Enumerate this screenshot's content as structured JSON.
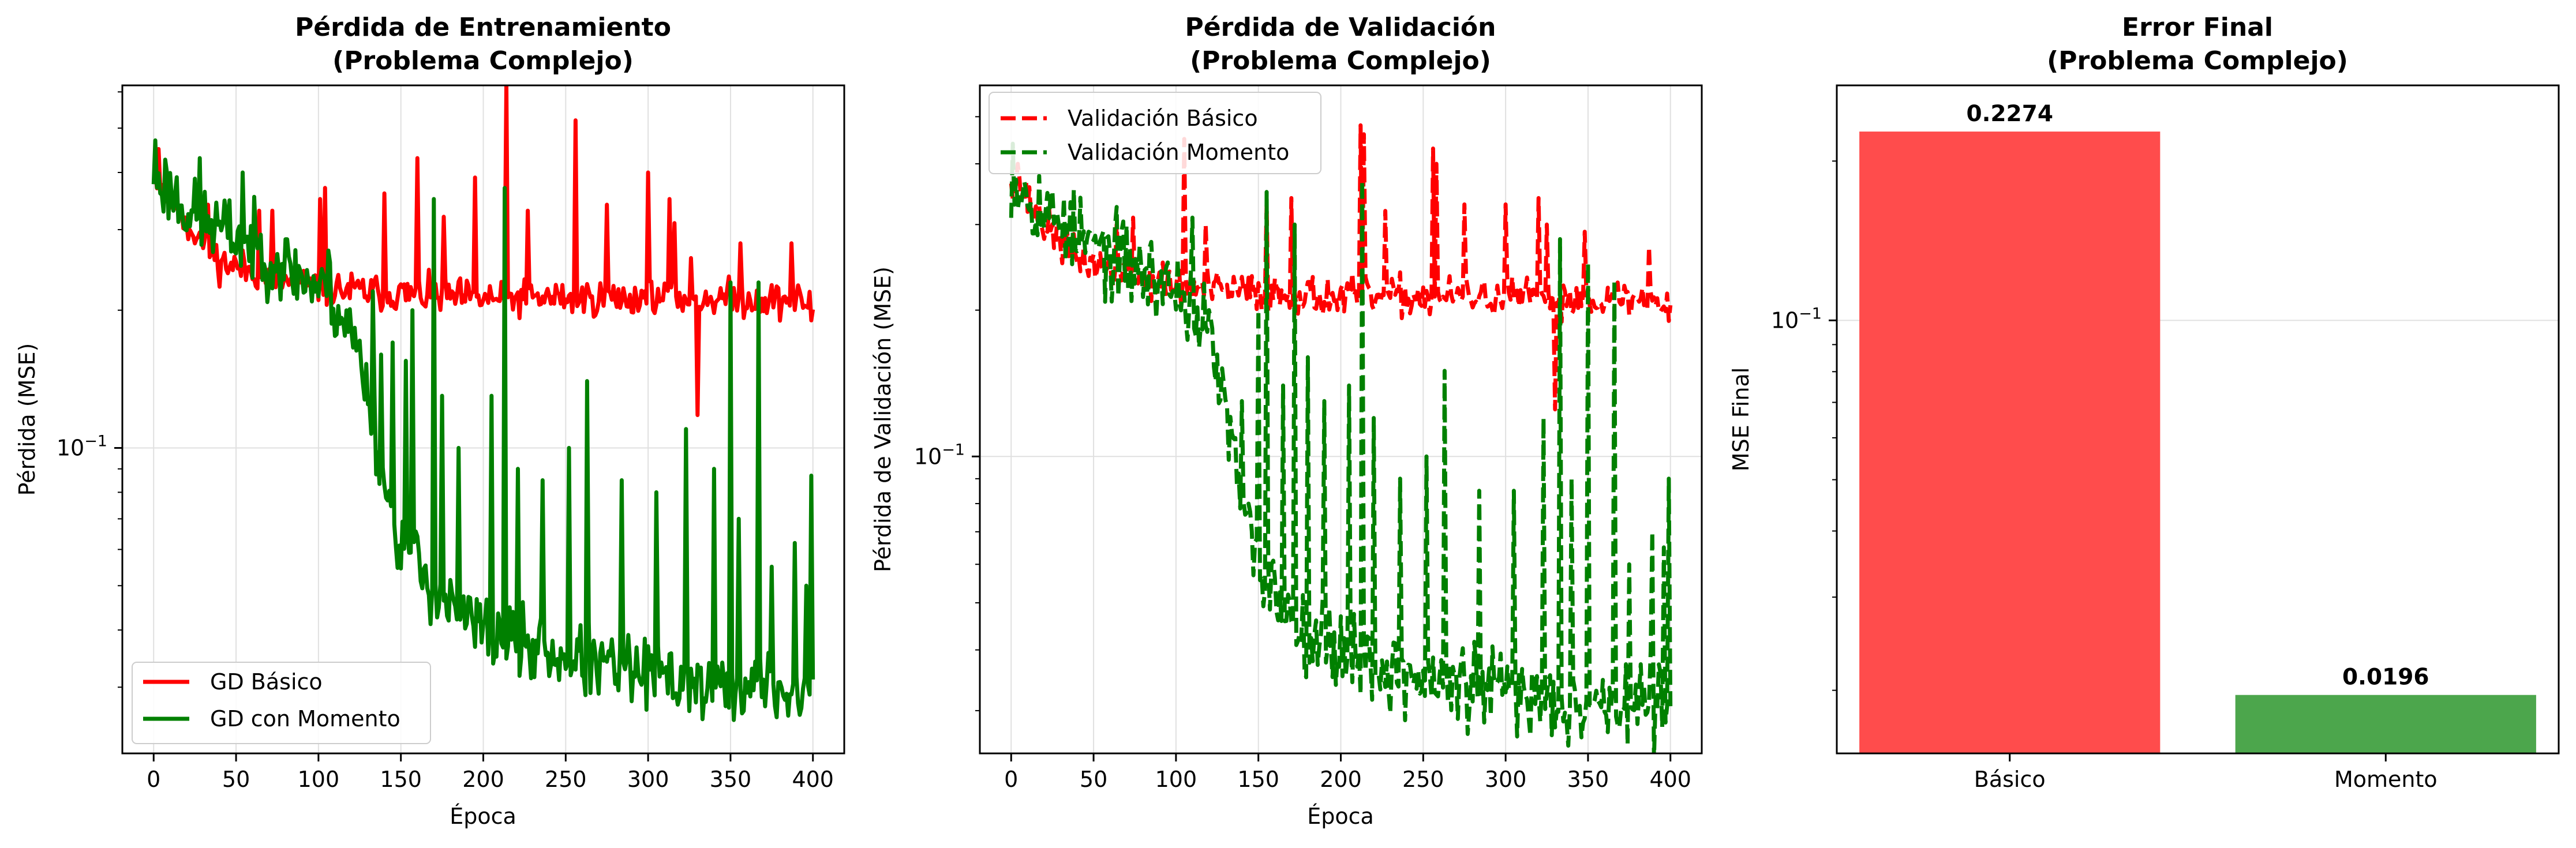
{
  "colors": {
    "basico": "#ff0000",
    "momento": "#008000",
    "bar_basico": "#ff4c4c",
    "bar_momento": "#4ca64c",
    "grid": "#e0e0e0"
  },
  "chart_data": [
    {
      "type": "line",
      "title": [
        "Pérdida de Entrenamiento",
        "(Problema Complejo)"
      ],
      "xlabel": "Época",
      "ylabel": "Pérdida (MSE)",
      "xscale": "linear",
      "yscale": "log",
      "xlim": [
        -19,
        419
      ],
      "ylim": [
        0.0215,
        0.62
      ],
      "xticks": [
        0,
        50,
        100,
        150,
        200,
        250,
        300,
        350,
        400
      ],
      "yticks": [
        {
          "value": 0.1,
          "label": "10",
          "exp": "−1"
        }
      ],
      "grid": true,
      "legend": {
        "position": "lower-left",
        "entries": [
          {
            "label": "GD Básico",
            "color": "#ff0000",
            "dash": "solid"
          },
          {
            "label": "GD con Momento",
            "color": "#008000",
            "dash": "solid"
          }
        ]
      },
      "series": [
        {
          "name": "GD Básico",
          "color": "#ff0000",
          "dash": "solid",
          "seed": 11,
          "anchors": [
            [
              0,
              0.4
            ],
            [
              20,
              0.31
            ],
            [
              40,
              0.255
            ],
            [
              80,
              0.232
            ],
            [
              110,
              0.222
            ],
            [
              150,
              0.217
            ],
            [
              200,
              0.212
            ],
            [
              250,
              0.213
            ],
            [
              300,
              0.212
            ],
            [
              350,
              0.213
            ],
            [
              400,
              0.208
            ]
          ],
          "noise": 0.07,
          "spikes": [
            [
              3,
              0.45
            ],
            [
              17,
              0.33
            ],
            [
              33,
              0.34
            ],
            [
              64,
              0.33
            ],
            [
              72,
              0.33
            ],
            [
              101,
              0.35
            ],
            [
              104,
              0.37
            ],
            [
              140,
              0.36
            ],
            [
              160,
              0.43
            ],
            [
              176,
              0.32
            ],
            [
              195,
              0.39
            ],
            [
              214,
              0.62
            ],
            [
              227,
              0.33
            ],
            [
              256,
              0.52
            ],
            [
              275,
              0.34
            ],
            [
              300,
              0.4
            ],
            [
              313,
              0.35
            ],
            [
              316,
              0.31
            ],
            [
              326,
              0.26
            ],
            [
              330,
              0.118
            ],
            [
              356,
              0.28
            ],
            [
              387,
              0.28
            ],
            [
              399,
              0.19
            ]
          ]
        },
        {
          "name": "GD con Momento",
          "color": "#008000",
          "dash": "solid",
          "seed": 23,
          "anchors": [
            [
              0,
              0.4
            ],
            [
              25,
              0.32
            ],
            [
              50,
              0.29
            ],
            [
              80,
              0.25
            ],
            [
              105,
              0.218
            ],
            [
              120,
              0.18
            ],
            [
              130,
              0.135
            ],
            [
              140,
              0.085
            ],
            [
              150,
              0.062
            ],
            [
              165,
              0.052
            ],
            [
              180,
              0.045
            ],
            [
              200,
              0.04
            ],
            [
              230,
              0.036
            ],
            [
              260,
              0.034
            ],
            [
              300,
              0.032
            ],
            [
              340,
              0.03
            ],
            [
              370,
              0.03
            ],
            [
              400,
              0.029
            ]
          ],
          "noise": 0.14,
          "spikes": [
            [
              1,
              0.47
            ],
            [
              28,
              0.43
            ],
            [
              54,
              0.4
            ],
            [
              106,
              0.27
            ],
            [
              120,
              0.18
            ],
            [
              133,
              0.22
            ],
            [
              138,
              0.16
            ],
            [
              145,
              0.17
            ],
            [
              153,
              0.155
            ],
            [
              157,
              0.2
            ],
            [
              170,
              0.35
            ],
            [
              175,
              0.13
            ],
            [
              185,
              0.1
            ],
            [
              205,
              0.13
            ],
            [
              213,
              0.37
            ],
            [
              221,
              0.09
            ],
            [
              236,
              0.085
            ],
            [
              252,
              0.1
            ],
            [
              263,
              0.14
            ],
            [
              284,
              0.085
            ],
            [
              305,
              0.08
            ],
            [
              323,
              0.11
            ],
            [
              340,
              0.09
            ],
            [
              350,
              0.23
            ],
            [
              355,
              0.07
            ],
            [
              367,
              0.23
            ],
            [
              375,
              0.055
            ],
            [
              389,
              0.062
            ],
            [
              396,
              0.05
            ],
            [
              399,
              0.087
            ]
          ]
        }
      ]
    },
    {
      "type": "line",
      "title": [
        "Pérdida de Validación",
        "(Problema Complejo)"
      ],
      "xlabel": "Época",
      "ylabel": "Pérdida de Validación (MSE)",
      "xscale": "linear",
      "yscale": "log",
      "xlim": [
        -19,
        419
      ],
      "ylim": [
        0.0245,
        0.58
      ],
      "xticks": [
        0,
        50,
        100,
        150,
        200,
        250,
        300,
        350,
        400
      ],
      "yticks": [
        {
          "value": 0.1,
          "label": "10",
          "exp": "−1"
        }
      ],
      "grid": true,
      "legend": {
        "position": "top-left",
        "entries": [
          {
            "label": "Validación Básico",
            "color": "#ff0000",
            "dash": "dashed"
          },
          {
            "label": "Validación Momento",
            "color": "#008000",
            "dash": "dashed"
          }
        ]
      },
      "series": [
        {
          "name": "Validación Básico",
          "color": "#ff0000",
          "dash": "dashed",
          "seed": 37,
          "anchors": [
            [
              0,
              0.38
            ],
            [
              20,
              0.3
            ],
            [
              40,
              0.255
            ],
            [
              80,
              0.232
            ],
            [
              110,
              0.222
            ],
            [
              150,
              0.217
            ],
            [
              200,
              0.212
            ],
            [
              250,
              0.213
            ],
            [
              300,
              0.212
            ],
            [
              350,
              0.213
            ],
            [
              400,
              0.208
            ]
          ],
          "noise": 0.07,
          "spikes": [
            [
              4,
              0.4
            ],
            [
              28,
              0.31
            ],
            [
              64,
              0.3
            ],
            [
              74,
              0.31
            ],
            [
              105,
              0.45
            ],
            [
              118,
              0.3
            ],
            [
              155,
              0.33
            ],
            [
              170,
              0.34
            ],
            [
              212,
              0.48
            ],
            [
              214,
              0.46
            ],
            [
              227,
              0.32
            ],
            [
              256,
              0.43
            ],
            [
              258,
              0.4
            ],
            [
              275,
              0.33
            ],
            [
              300,
              0.33
            ],
            [
              320,
              0.34
            ],
            [
              325,
              0.3
            ],
            [
              330,
              0.125
            ],
            [
              348,
              0.29
            ],
            [
              387,
              0.27
            ],
            [
              399,
              0.19
            ]
          ]
        },
        {
          "name": "Validación Momento",
          "color": "#008000",
          "dash": "dashed",
          "seed": 53,
          "anchors": [
            [
              0,
              0.38
            ],
            [
              25,
              0.31
            ],
            [
              50,
              0.27
            ],
            [
              80,
              0.24
            ],
            [
              105,
              0.215
            ],
            [
              120,
              0.18
            ],
            [
              130,
              0.125
            ],
            [
              140,
              0.08
            ],
            [
              150,
              0.058
            ],
            [
              165,
              0.05
            ],
            [
              180,
              0.044
            ],
            [
              200,
              0.04
            ],
            [
              230,
              0.036
            ],
            [
              260,
              0.034
            ],
            [
              300,
              0.033
            ],
            [
              340,
              0.031
            ],
            [
              370,
              0.031
            ],
            [
              400,
              0.031
            ]
          ],
          "noise": 0.15,
          "spikes": [
            [
              1,
              0.44
            ],
            [
              32,
              0.34
            ],
            [
              47,
              0.29
            ],
            [
              110,
              0.31
            ],
            [
              120,
              0.2
            ],
            [
              140,
              0.13
            ],
            [
              150,
              0.2
            ],
            [
              155,
              0.35
            ],
            [
              165,
              0.14
            ],
            [
              172,
              0.3
            ],
            [
              180,
              0.16
            ],
            [
              190,
              0.13
            ],
            [
              205,
              0.14
            ],
            [
              213,
              0.37
            ],
            [
              220,
              0.12
            ],
            [
              236,
              0.09
            ],
            [
              252,
              0.1
            ],
            [
              263,
              0.15
            ],
            [
              284,
              0.085
            ],
            [
              305,
              0.085
            ],
            [
              323,
              0.12
            ],
            [
              333,
              0.28
            ],
            [
              340,
              0.09
            ],
            [
              350,
              0.25
            ],
            [
              366,
              0.23
            ],
            [
              375,
              0.06
            ],
            [
              389,
              0.07
            ],
            [
              396,
              0.065
            ],
            [
              399,
              0.09
            ]
          ]
        }
      ]
    },
    {
      "type": "bar",
      "title": [
        "Error Final",
        "(Problema Complejo)"
      ],
      "xlabel": "",
      "ylabel": "MSE Final",
      "yscale": "log",
      "ylim": [
        0.0152,
        0.278
      ],
      "yticks": [
        {
          "value": 0.1,
          "label": "10",
          "exp": "−1"
        }
      ],
      "grid": true,
      "categories": [
        "Básico",
        "Momento"
      ],
      "values": [
        0.2274,
        0.0196
      ],
      "labels": [
        "0.2274",
        "0.0196"
      ]
    }
  ]
}
